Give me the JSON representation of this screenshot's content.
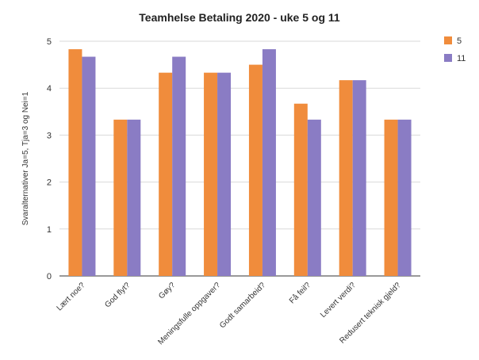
{
  "chart_data": {
    "type": "bar",
    "title": "Teamhelse Betaling 2020 - uke 5 og 11",
    "xlabel": "",
    "ylabel": "Svaralternativer Ja=5, Tja=3 og Nei=1",
    "ylim": [
      0,
      5
    ],
    "yticks": [
      0,
      1,
      2,
      3,
      4,
      5
    ],
    "grid": true,
    "legend_position": "top-right",
    "categories": [
      "Lært noe?",
      "God flyt?",
      "Gøy?",
      "Meningsfulle oppgaver?",
      "Godt samarbeid?",
      "Få feil?",
      "Levert verdi?",
      "Redusert teknisk gjeld?"
    ],
    "series": [
      {
        "name": "5",
        "color": "#f08c3c",
        "values": [
          4.83,
          3.33,
          4.33,
          4.33,
          4.5,
          3.67,
          4.17,
          3.33
        ]
      },
      {
        "name": "11",
        "color": "#8a7cc4",
        "values": [
          4.67,
          3.33,
          4.67,
          4.33,
          4.83,
          3.33,
          4.17,
          3.33
        ]
      }
    ]
  }
}
